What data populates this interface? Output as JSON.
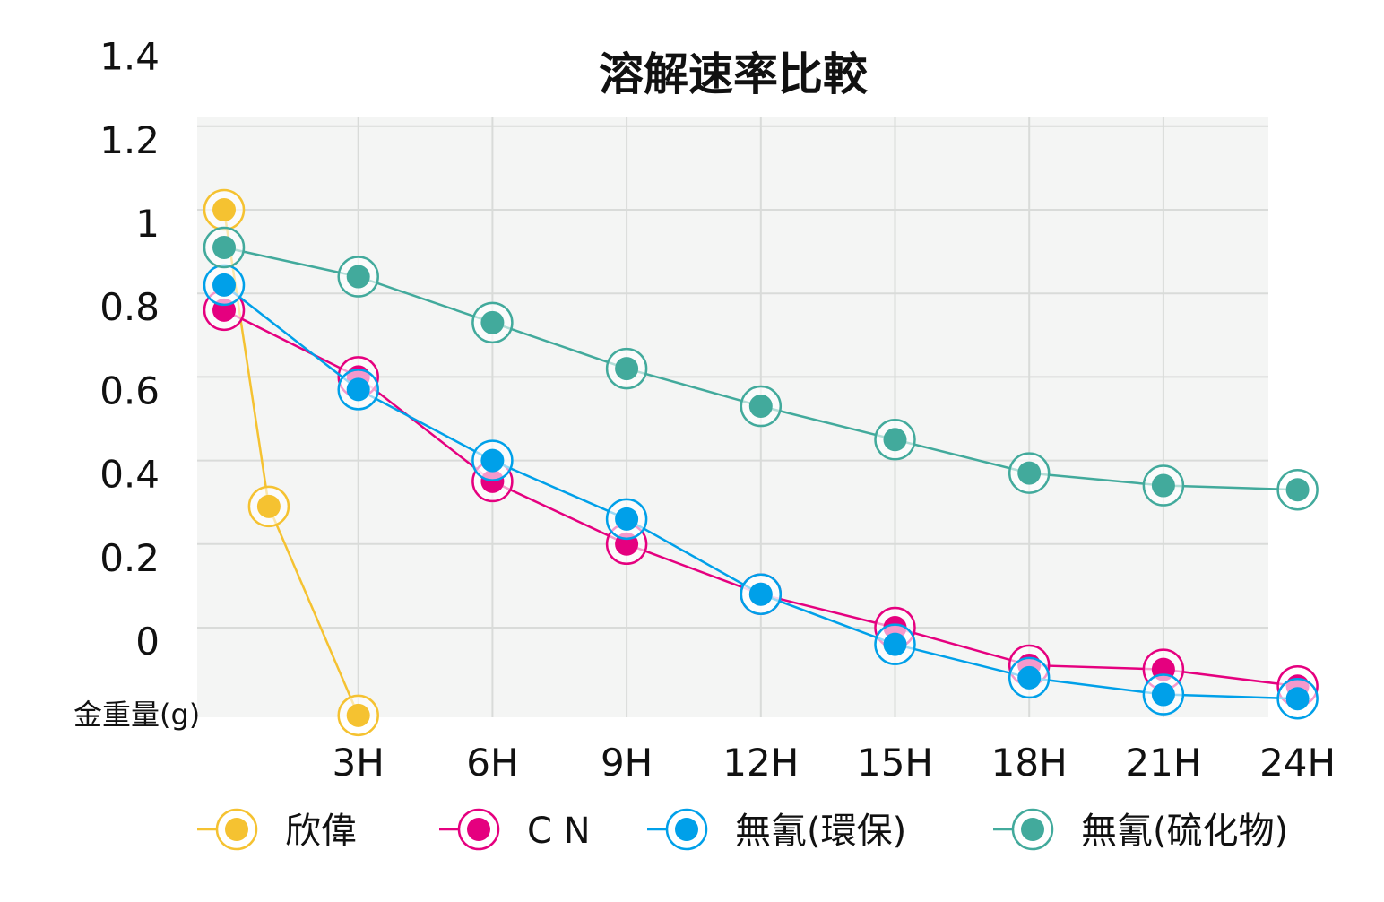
{
  "chart_data": {
    "type": "line",
    "title": "溶解速率比較",
    "xlabel": "",
    "ylabel": "金重量(g)",
    "x_categories": [
      "3H",
      "6H",
      "9H",
      "12H",
      "15H",
      "18H",
      "21H",
      "24H"
    ],
    "x_range": [
      0,
      24
    ],
    "y_ticks": [
      "0",
      "0.2",
      "0.4",
      "0.6",
      "0.8",
      "1",
      "1.2",
      "1.4"
    ],
    "y_tick_values": [
      0,
      0.2,
      0.4,
      0.6,
      0.8,
      1.0,
      1.2,
      1.4
    ],
    "ylim": [
      -0.21,
      1.4
    ],
    "grid": true,
    "legend_position": "bottom",
    "series": [
      {
        "name": "欣偉",
        "color": "#f5c231",
        "x": [
          0,
          1,
          3
        ],
        "y": [
          1.0,
          0.29,
          -0.21
        ]
      },
      {
        "name": "C  N",
        "color": "#e5007f",
        "x": [
          0,
          3,
          6,
          9,
          12,
          15,
          18,
          21,
          24
        ],
        "y": [
          0.76,
          0.6,
          0.35,
          0.2,
          0.08,
          0.0,
          -0.09,
          -0.1,
          -0.14
        ]
      },
      {
        "name": "無氰(環保)",
        "color": "#00a0e9",
        "x": [
          0,
          3,
          6,
          9,
          12,
          15,
          18,
          21,
          24
        ],
        "y": [
          0.82,
          0.57,
          0.4,
          0.26,
          0.08,
          -0.04,
          -0.12,
          -0.16,
          -0.17
        ]
      },
      {
        "name": "無氰(硫化物)",
        "color": "#42aa9c",
        "x": [
          0,
          3,
          6,
          9,
          12,
          15,
          18,
          21,
          24
        ],
        "y": [
          0.91,
          0.84,
          0.73,
          0.62,
          0.53,
          0.45,
          0.37,
          0.34,
          0.33
        ]
      }
    ]
  }
}
